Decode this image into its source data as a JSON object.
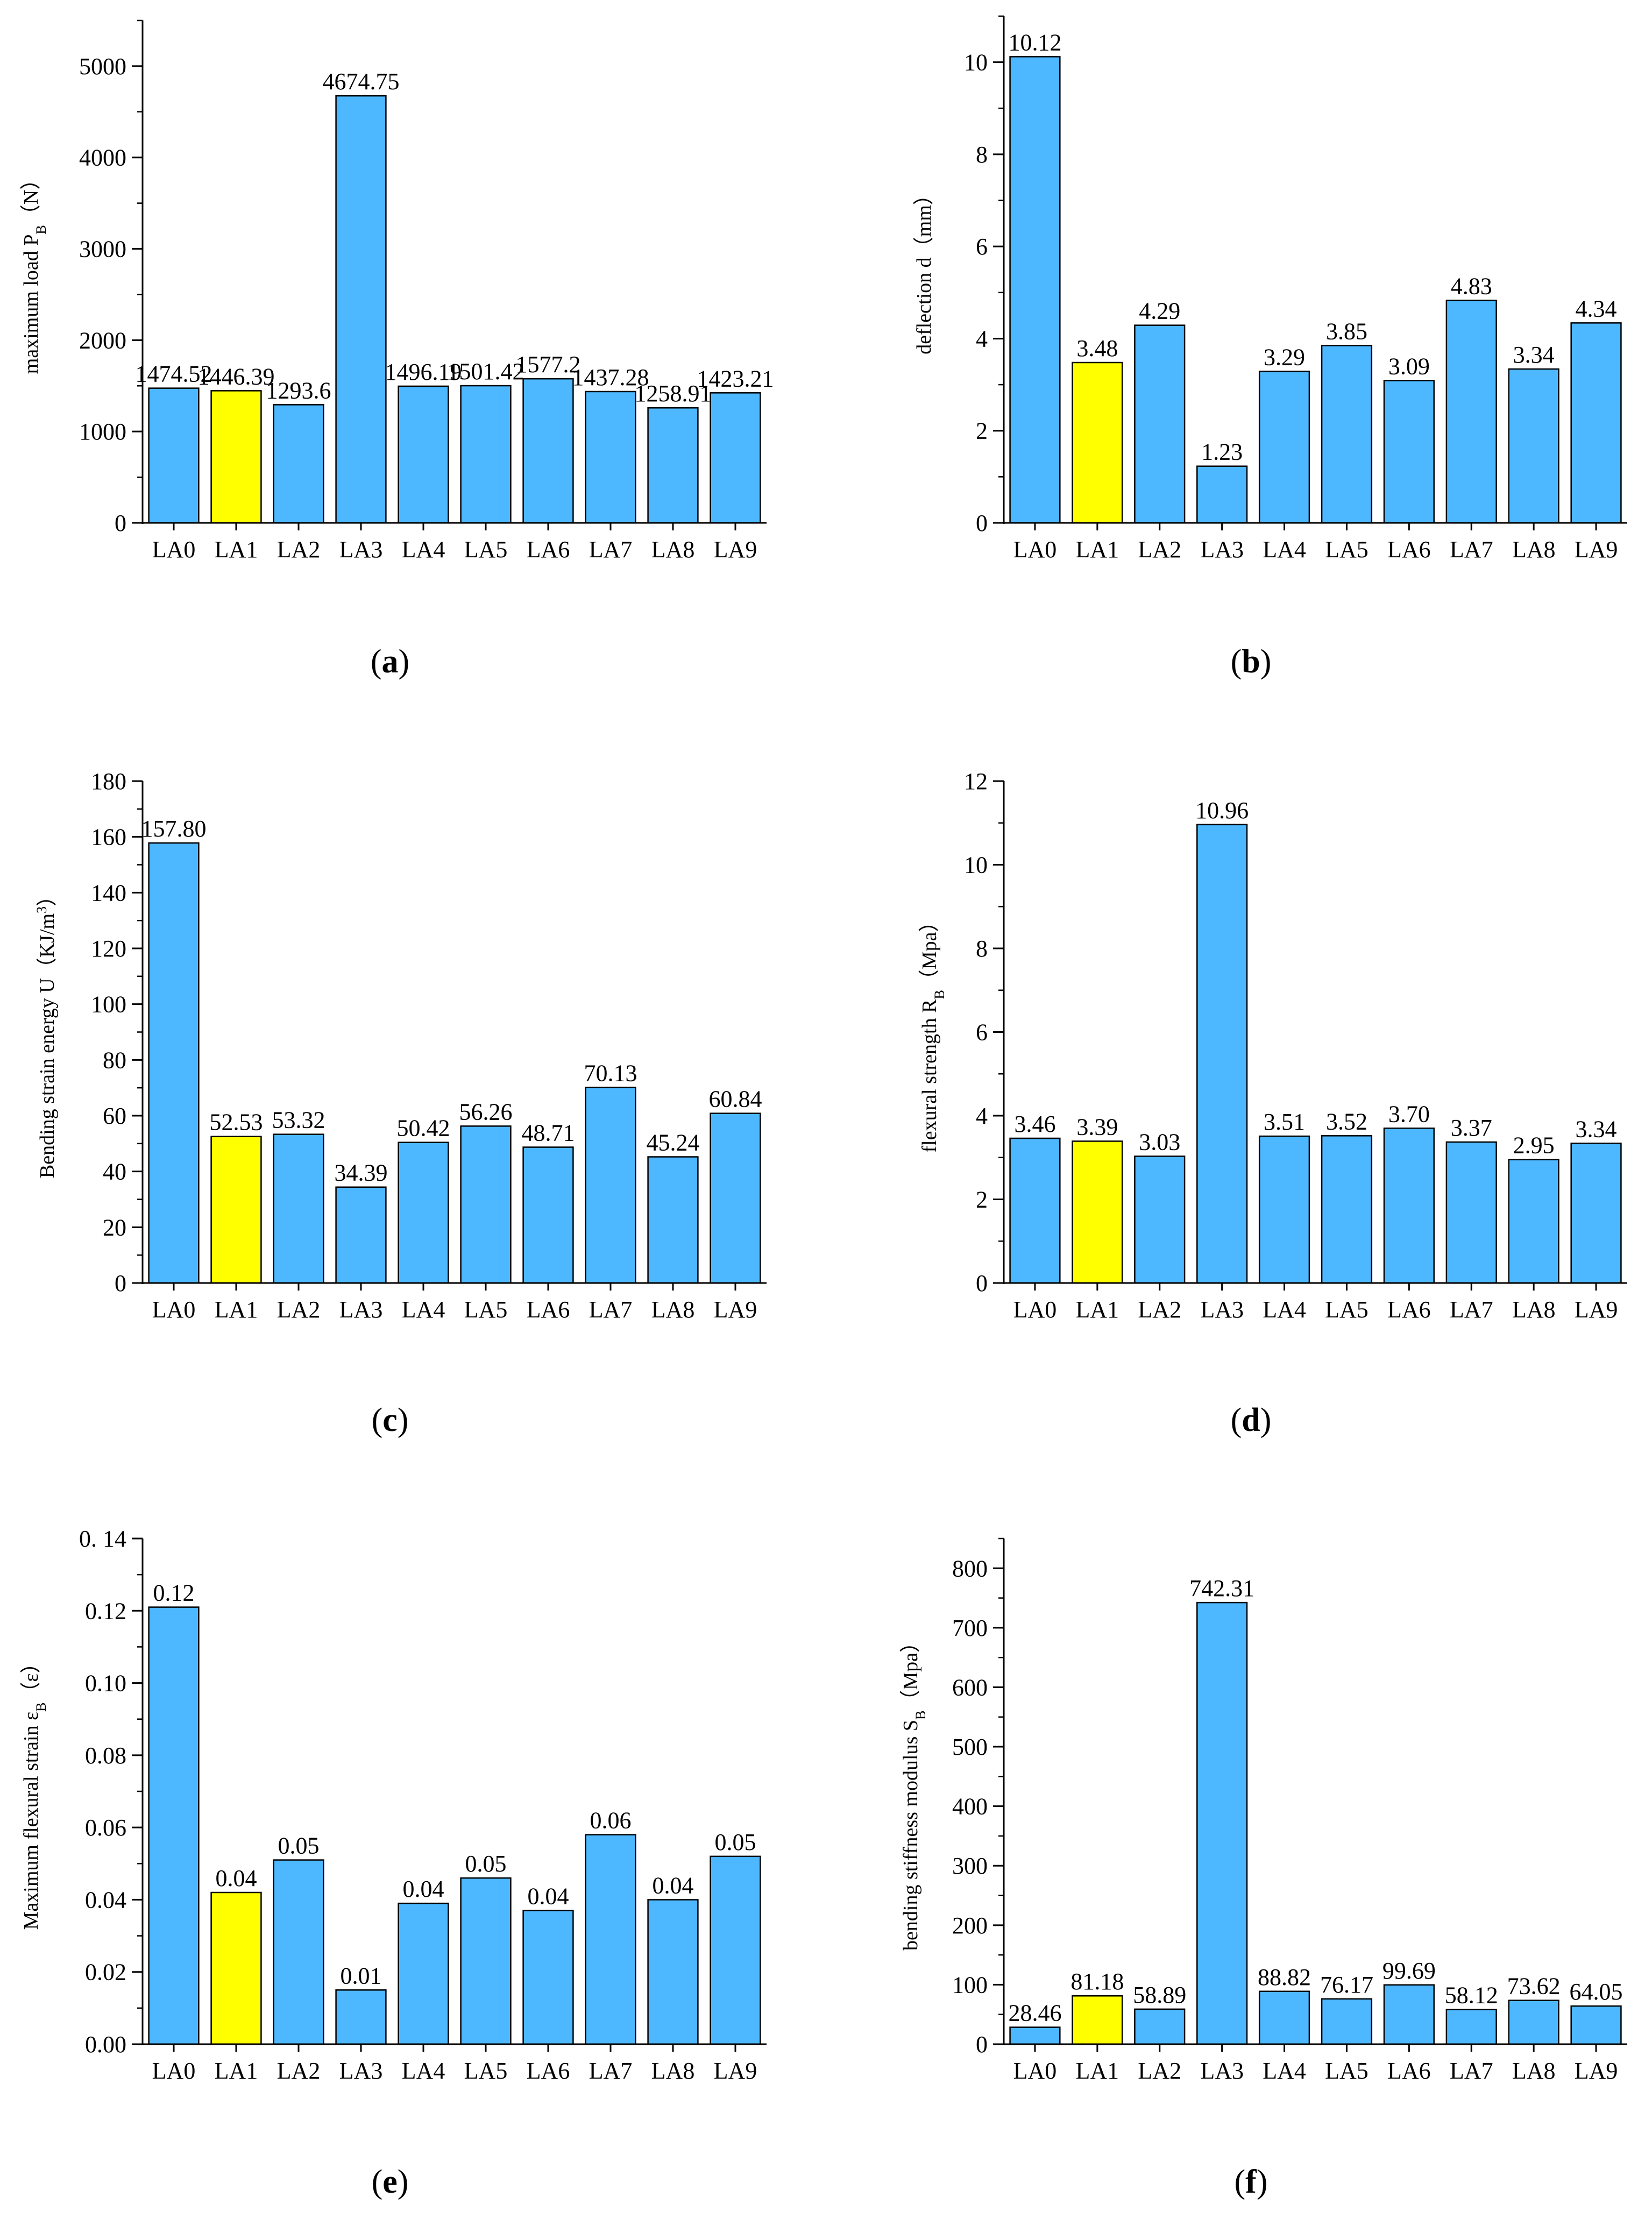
{
  "chart_data": [
    {
      "type": "bar",
      "panel_label": "a",
      "title": "",
      "xlabel": "",
      "ylabel_main": "maximum load P",
      "ylabel_sub": "B",
      "ylabel_tail": "（N）",
      "categories": [
        "LA0",
        "LA1",
        "LA2",
        "LA3",
        "LA4",
        "LA5",
        "LA6",
        "LA7",
        "LA8",
        "LA9"
      ],
      "values": [
        1474.52,
        1446.39,
        1293.6,
        4674.75,
        1496.19,
        1501.42,
        1577.2,
        1437.28,
        1258.91,
        1423.21
      ],
      "value_labels": [
        "1474.52",
        "1446.39",
        "1293.6",
        "4674.75",
        "1496.19",
        "1501.42",
        "1577.2",
        "1437.28",
        "1258.91",
        "1423.21"
      ],
      "highlight_index": 1,
      "ylim": [
        0,
        5500
      ],
      "yticks": [
        0,
        1000,
        2000,
        3000,
        4000,
        5000
      ],
      "ytick_labels": [
        "0",
        "1000",
        "2000",
        "3000",
        "4000",
        "5000"
      ],
      "minor_step": 500,
      "grid": false
    },
    {
      "type": "bar",
      "panel_label": "b",
      "title": "",
      "xlabel": "",
      "ylabel_main": "deflection d（mm）",
      "ylabel_sub": "",
      "ylabel_tail": "",
      "categories": [
        "LA0",
        "LA1",
        "LA2",
        "LA3",
        "LA4",
        "LA5",
        "LA6",
        "LA7",
        "LA8",
        "LA9"
      ],
      "values": [
        10.12,
        3.48,
        4.29,
        1.23,
        3.29,
        3.85,
        3.09,
        4.83,
        3.34,
        4.34
      ],
      "value_labels": [
        "10.12",
        "3.48",
        "4.29",
        "1.23",
        "3.29",
        "3.85",
        "3.09",
        "4.83",
        "3.34",
        "4.34"
      ],
      "highlight_index": 1,
      "ylim": [
        0,
        11
      ],
      "yticks": [
        0,
        2,
        4,
        6,
        8,
        10
      ],
      "ytick_labels": [
        "0",
        "2",
        "4",
        "6",
        "8",
        "10"
      ],
      "minor_step": 1,
      "grid": false
    },
    {
      "type": "bar",
      "panel_label": "c",
      "title": "",
      "xlabel": "",
      "ylabel_main": "Bending strain energy U（KJ/m",
      "ylabel_sup": "3",
      "ylabel_tail": "）",
      "categories": [
        "LA0",
        "LA1",
        "LA2",
        "LA3",
        "LA4",
        "LA5",
        "LA6",
        "LA7",
        "LA8",
        "LA9"
      ],
      "values": [
        157.8,
        52.53,
        53.32,
        34.39,
        50.42,
        56.26,
        48.71,
        70.13,
        45.24,
        60.84
      ],
      "value_labels": [
        "157.80",
        "52.53",
        "53.32",
        "34.39",
        "50.42",
        "56.26",
        "48.71",
        "70.13",
        "45.24",
        "60.84"
      ],
      "highlight_index": 1,
      "ylim": [
        0,
        180
      ],
      "yticks": [
        0,
        20,
        40,
        60,
        80,
        100,
        120,
        140,
        160,
        180
      ],
      "ytick_labels": [
        "0",
        "20",
        "40",
        "60",
        "80",
        "100",
        "120",
        "140",
        "160",
        "180"
      ],
      "minor_step": 10,
      "grid": false
    },
    {
      "type": "bar",
      "panel_label": "d",
      "title": "",
      "xlabel": "",
      "ylabel_main": "flexural strength R",
      "ylabel_sub": "B",
      "ylabel_tail": "（Mpa）",
      "categories": [
        "LA0",
        "LA1",
        "LA2",
        "LA3",
        "LA4",
        "LA5",
        "LA6",
        "LA7",
        "LA8",
        "LA9"
      ],
      "values": [
        3.46,
        3.39,
        3.03,
        10.96,
        3.51,
        3.52,
        3.7,
        3.37,
        2.95,
        3.34
      ],
      "value_labels": [
        "3.46",
        "3.39",
        "3.03",
        "10.96",
        "3.51",
        "3.52",
        "3.70",
        "3.37",
        "2.95",
        "3.34"
      ],
      "highlight_index": 1,
      "ylim": [
        0,
        12
      ],
      "yticks": [
        0,
        2,
        4,
        6,
        8,
        10,
        12
      ],
      "ytick_labels": [
        "0",
        "2",
        "4",
        "6",
        "8",
        "10",
        "12"
      ],
      "minor_step": 1,
      "grid": false
    },
    {
      "type": "bar",
      "panel_label": "e",
      "title": "",
      "xlabel": "",
      "ylabel_main": "Maximum flexural strain ε",
      "ylabel_sub": "B",
      "ylabel_tail": "（ε）",
      "categories": [
        "LA0",
        "LA1",
        "LA2",
        "LA3",
        "LA4",
        "LA5",
        "LA6",
        "LA7",
        "LA8",
        "LA9"
      ],
      "values": [
        0.121,
        0.042,
        0.051,
        0.015,
        0.039,
        0.046,
        0.037,
        0.058,
        0.04,
        0.052
      ],
      "value_labels": [
        "0.12",
        "0.04",
        "0.05",
        "0.01",
        "0.04",
        "0.05",
        "0.04",
        "0.06",
        "0.04",
        "0.05"
      ],
      "highlight_index": 1,
      "ylim": [
        0,
        0.14
      ],
      "yticks": [
        0,
        0.02,
        0.04,
        0.06,
        0.08,
        0.1,
        0.12,
        0.14
      ],
      "ytick_labels": [
        "0.00",
        "0.02",
        "0.04",
        "0.06",
        "0.08",
        "0.10",
        "0.12",
        "0. 14"
      ],
      "minor_step": 0.01,
      "grid": false
    },
    {
      "type": "bar",
      "panel_label": "f",
      "title": "",
      "xlabel": "",
      "ylabel_main": "bending stiffness modulus S",
      "ylabel_sub": "B",
      "ylabel_tail": "（Mpa）",
      "categories": [
        "LA0",
        "LA1",
        "LA2",
        "LA3",
        "LA4",
        "LA5",
        "LA6",
        "LA7",
        "LA8",
        "LA9"
      ],
      "values": [
        28.46,
        81.18,
        58.89,
        742.31,
        88.82,
        76.17,
        99.69,
        58.12,
        73.62,
        64.05
      ],
      "value_labels": [
        "28.46",
        "81.18",
        "58.89",
        "742.31",
        "88.82",
        "76.17",
        "99.69",
        "58.12",
        "73.62",
        "64.05"
      ],
      "highlight_index": 1,
      "ylim": [
        0,
        850
      ],
      "yticks": [
        0,
        100,
        200,
        300,
        400,
        500,
        600,
        700,
        800
      ],
      "ytick_labels": [
        "0",
        "100",
        "200",
        "300",
        "400",
        "500",
        "600",
        "700",
        "800"
      ],
      "minor_step": 50,
      "grid": false
    }
  ],
  "colors": {
    "bar": "#4DB8FF",
    "highlight": "#FFFF00",
    "outline": "#000000"
  }
}
